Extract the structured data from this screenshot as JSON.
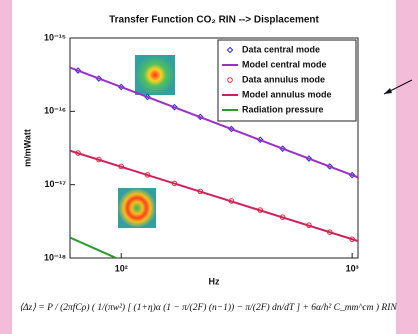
{
  "chart_data": {
    "type": "line",
    "title": "Transfer Function CO₂ RIN --> Displacement",
    "x_label": "Hz",
    "y_label": "m/mWatt",
    "x_log": true,
    "y_log": true,
    "xlim": [
      60,
      1060
    ],
    "ylim": [
      1e-18,
      1e-15
    ],
    "xticks": [
      {
        "value": 100,
        "label": "10²"
      },
      {
        "value": 1000,
        "label": "10³"
      }
    ],
    "yticks": [
      {
        "value": 1e-18,
        "label": "10⁻¹⁸"
      },
      {
        "value": 1e-17,
        "label": "10⁻¹⁷"
      },
      {
        "value": 1e-16,
        "label": "10⁻¹⁶"
      },
      {
        "value": 1e-15,
        "label": "10⁻¹⁵"
      }
    ],
    "legend": "upper right",
    "series": [
      {
        "name": "Data central mode",
        "color": "#2b2bd6",
        "marker": "diamond",
        "x": [
          65,
          80,
          100,
          130,
          170,
          220,
          300,
          400,
          500,
          650,
          800,
          1000
        ],
        "values": [
          3.6e-16,
          2.8e-16,
          2.15e-16,
          1.57e-16,
          1.14e-16,
          8.4e-17,
          5.75e-17,
          4.1e-17,
          3.1e-17,
          2.27e-17,
          1.77e-17,
          1.35e-17
        ]
      },
      {
        "name": "Model central mode",
        "color": "#9b30c8",
        "marker": "line",
        "x": [
          60,
          1060
        ],
        "values": [
          3.96e-16,
          1.26e-17
        ]
      },
      {
        "name": "Data annulus mode",
        "color": "#e0303a",
        "marker": "circle",
        "x": [
          65,
          80,
          100,
          130,
          170,
          220,
          300,
          400,
          500,
          650,
          800,
          1000
        ],
        "values": [
          2.7e-17,
          2.2e-17,
          1.77e-17,
          1.36e-17,
          1.04e-17,
          8.1e-18,
          6e-18,
          4.5e-18,
          3.6e-18,
          2.8e-18,
          2.25e-18,
          1.8e-18
        ]
      },
      {
        "name": "Model annulus mode",
        "color": "#d0205a",
        "marker": "line",
        "x": [
          60,
          1060
        ],
        "values": [
          2.9e-17,
          1.7e-18
        ]
      },
      {
        "name": "Radiation pressure",
        "color": "#2a9a2a",
        "marker": "line",
        "x": [
          60,
          95
        ],
        "values": [
          1.9e-18,
          1e-18
        ]
      }
    ],
    "formula": "⟨Δz⟩ = P / (2πfCρ) ( 1/(πw²) [ (1+η)α (1 − π/(2F) (n−1)) − π/(2F) dn/dT ] + 6α/h² C_mm^cm ) RIN"
  }
}
